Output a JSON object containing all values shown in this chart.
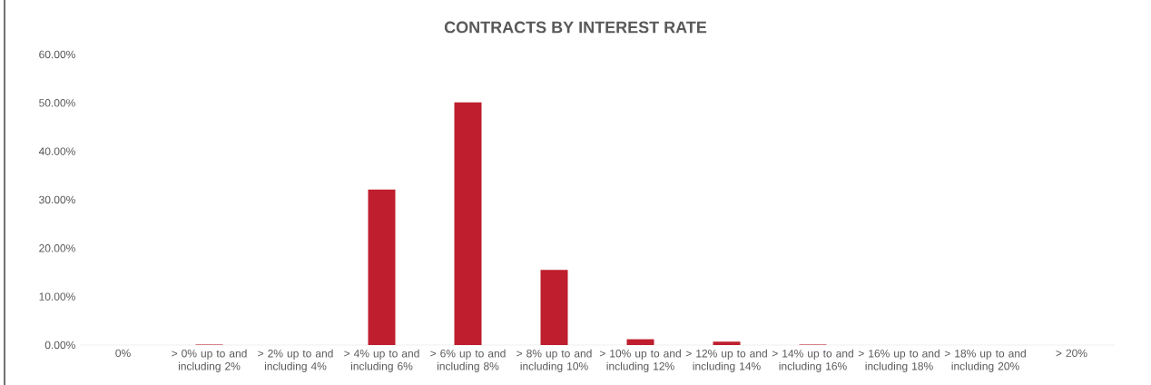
{
  "chart_data": {
    "type": "bar",
    "title": "CONTRACTS BY INTEREST RATE",
    "categories": [
      "0%",
      "> 0% up to and including 2%",
      "> 2% up to and including 4%",
      "> 4% up to and including 6%",
      "> 6% up to and including 8%",
      "> 8% up to and including 10%",
      "> 10% up to and including 12%",
      "> 12% up to and including 14%",
      "> 14% up to and including 16%",
      "> 16% up to and including 18%",
      "> 18% up to and including 20%",
      "> 20%"
    ],
    "values": [
      0,
      0.1,
      0,
      32.1,
      50.1,
      15.5,
      1.2,
      0.7,
      0.1,
      0,
      0,
      0
    ],
    "color": "#be1e2d",
    "ylim": [
      0,
      60
    ],
    "yticks": [
      {
        "value": 0,
        "label": "0.00%"
      },
      {
        "value": 10,
        "label": "10.00%"
      },
      {
        "value": 20,
        "label": "20.00%"
      },
      {
        "value": 30,
        "label": "30.00%"
      },
      {
        "value": 40,
        "label": "40.00%"
      },
      {
        "value": 50,
        "label": "50.00%"
      },
      {
        "value": 60,
        "label": "60.00%"
      }
    ]
  }
}
